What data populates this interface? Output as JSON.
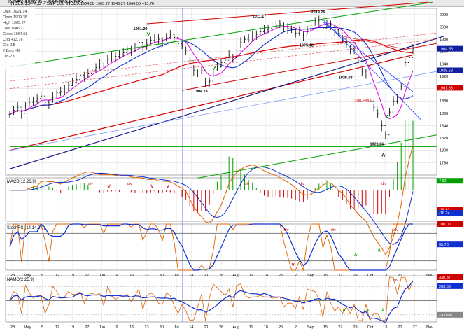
{
  "window": {
    "symbol": "INDEX:$SPX,D -- S&P 500 INDEX",
    "header_values": [
      "1964.58",
      "1965.27",
      "1946.27",
      "1964.58",
      "+13.76"
    ],
    "box_label": "3.59"
  },
  "data_box": {
    "lines": [
      "Date  10/21/14",
      "Open  1909.38",
      "High  1965.27",
      "Low   1946.27",
      "Close 1964.58",
      "Chg   +13.76",
      "Cnt  0.5",
      "# Bars  -48",
      "Dir   -73"
    ]
  },
  "panels": {
    "macd": "MACD(12,26,9)",
    "stochrsi": "StochRSI(14,14,3,9)",
    "mcclellan": "NAMO(2,25,9)"
  },
  "colors": {
    "price": "#000000",
    "ma_short": "#e000e0",
    "ma_mid": "#1030d0",
    "ma_long": "#e00000",
    "green": "#00a000",
    "navy": "#101080",
    "blue_trend": "#3050ff",
    "grid": "#d8d8d8"
  },
  "chart_data": [
    {
      "type": "line",
      "title": "INDEX:$SPX,D -- S&P 500 INDEX",
      "ylim": [
        1760,
        2030
      ],
      "y_ticks": [
        1780,
        1800,
        1820,
        1840,
        1860,
        1880,
        1900,
        1920,
        1940,
        1960,
        1980,
        2000,
        2020
      ],
      "right_tags": [
        "1964.58",
        "1929.62",
        "1901.33"
      ],
      "annotations": [
        "1991.39",
        "2011.17",
        "2019.26",
        "1975.48",
        "1926.03",
        "1904.78",
        "1820.66",
        "200-EMA",
        "A",
        "A",
        "A",
        "V"
      ],
      "series": [
        {
          "name": "S&P 500",
          "values": [
            1858,
            1865,
            1870,
            1860,
            1872,
            1878,
            1880,
            1884,
            1888,
            1878,
            1875,
            1886,
            1893,
            1895,
            1898,
            1905,
            1910,
            1915,
            1922,
            1920,
            1924,
            1930,
            1934,
            1940,
            1936,
            1947,
            1951,
            1952,
            1955,
            1958,
            1963,
            1962,
            1966,
            1975,
            1968,
            1972,
            1978,
            1982,
            1980,
            1977,
            1983,
            1987,
            1983,
            1973,
            1970,
            1962,
            1945,
            1930,
            1925,
            1930,
            1910,
            1912,
            1925,
            1935,
            1942,
            1946,
            1955,
            1950,
            1962,
            1975,
            1980,
            1982,
            1985,
            1988,
            1992,
            1995,
            1998,
            2000,
            2002,
            2005,
            2000,
            1998,
            1996,
            1990,
            1993,
            1986,
            1995,
            2003,
            2010,
            2011,
            1998,
            2005,
            2003,
            1995,
            1990,
            1980,
            1975,
            1965,
            1962,
            1945,
            1928,
            1925,
            1880,
            1870,
            1860,
            1840,
            1825,
            1862,
            1880,
            1885,
            1903,
            1942,
            1950,
            1965
          ]
        }
      ]
    },
    {
      "type": "bar",
      "title": "MACD(12,26,9)",
      "ylim": [
        -25,
        10
      ],
      "y_tags": [
        "7.62",
        "-15.62",
        "-18.24"
      ],
      "annotations": [
        "div",
        "div",
        "div",
        "div",
        "div",
        "div",
        "V",
        "V",
        "V"
      ]
    },
    {
      "type": "line",
      "title": "StochRSI(14,14,3,9)",
      "ylim": [
        0,
        100
      ],
      "y_tags": [
        "100.00",
        "55.78"
      ],
      "annotations": [
        "div",
        "div",
        "div",
        "A",
        "A",
        "V"
      ]
    },
    {
      "type": "line",
      "title": "NAMO(2,25,9)",
      "ylim": [
        -300,
        350
      ],
      "y_tags": [
        "330.37",
        "203.66",
        "-200.00"
      ],
      "annotations": [
        "div",
        "A",
        "A",
        "A"
      ]
    }
  ],
  "x_axis": {
    "labels": [
      "28",
      "May",
      "5",
      "12",
      "19",
      "27",
      "Jun",
      "9",
      "16",
      "23",
      "30",
      "Jul",
      "14",
      "21",
      "28",
      "Aug",
      "11",
      "18",
      "25",
      "2",
      "Sep",
      "15",
      "22",
      "29",
      "Oct",
      "13",
      "20",
      "27",
      "Nov"
    ]
  }
}
